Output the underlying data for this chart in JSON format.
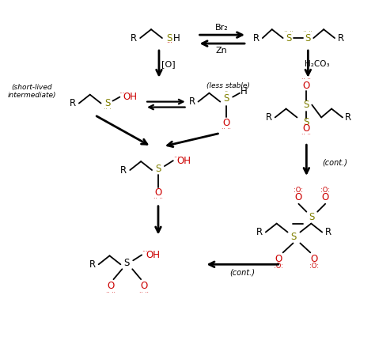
{
  "bg_color": "#ffffff",
  "olive": "#808000",
  "red": "#cc0000",
  "black": "#000000",
  "fig_width": 4.74,
  "fig_height": 4.4,
  "dpi": 100,
  "xlim": [
    0,
    474
  ],
  "ylim": [
    0,
    440
  ]
}
